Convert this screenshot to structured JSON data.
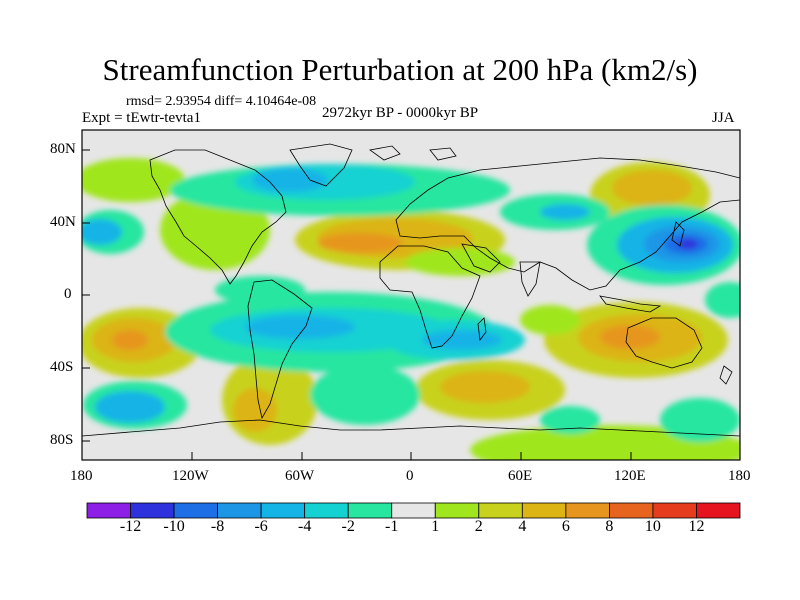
{
  "title": "Streamfunction Perturbation at 200 hPa (km2/s)",
  "stats": "rmsd= 2.93954 diff= 4.10464e-08",
  "experiment": "Expt = tEwtr-tevta1",
  "period": "2972kyr BP - 0000kyr BP",
  "season": "JJA",
  "lat_ticks": [
    "80N",
    "40N",
    "0",
    "40S",
    "80S"
  ],
  "lon_ticks": [
    "180",
    "120W",
    "60W",
    "0",
    "60E",
    "120E",
    "180"
  ],
  "colorbar": {
    "labels": [
      "-12",
      "-10",
      "-8",
      "-6",
      "-4",
      "-2",
      "-1",
      "1",
      "2",
      "4",
      "6",
      "8",
      "10",
      "12"
    ],
    "colors": [
      "#8c1ee6",
      "#2d32dc",
      "#1e6ee6",
      "#1e96e6",
      "#14b4e6",
      "#14d2d2",
      "#28e6a0",
      "#e6e6e6",
      "#a0e61e",
      "#c8d21e",
      "#dcb414",
      "#e6961e",
      "#e6641e",
      "#e63c1e",
      "#e6141e"
    ]
  }
}
